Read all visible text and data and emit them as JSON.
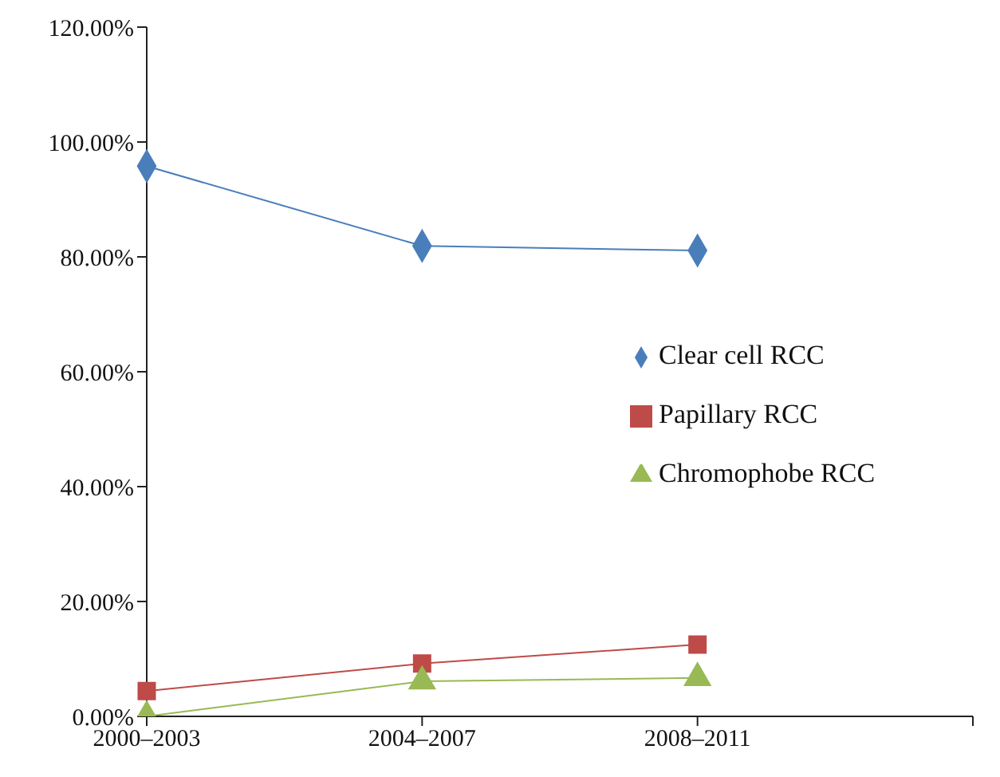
{
  "chart_data": {
    "type": "line",
    "categories": [
      "2000–2003",
      "2004–2007",
      "2008–2011",
      null
    ],
    "series": [
      {
        "name": "Clear cell RCC",
        "color": "#4a7ebb",
        "marker": "diamond",
        "values": [
          95.8,
          81.9,
          81.1,
          null
        ]
      },
      {
        "name": "Papillary RCC",
        "color": "#be4b48",
        "marker": "square",
        "values": [
          4.4,
          9.2,
          12.5,
          null
        ]
      },
      {
        "name": "Chromophobe RCC",
        "color": "#98b954",
        "marker": "triangle",
        "values": [
          0,
          6.1,
          6.7,
          null
        ]
      }
    ],
    "ylim": [
      0,
      120
    ],
    "yticks": [
      {
        "value": 0,
        "label": "0.00%"
      },
      {
        "value": 20,
        "label": "20.00%"
      },
      {
        "value": 40,
        "label": "40.00%"
      },
      {
        "value": 60,
        "label": "60.00%"
      },
      {
        "value": 80,
        "label": "80.00%"
      },
      {
        "value": 100,
        "label": "100.00%"
      },
      {
        "value": 120,
        "label": "120.00%"
      }
    ],
    "legend": "right",
    "grid": false
  }
}
